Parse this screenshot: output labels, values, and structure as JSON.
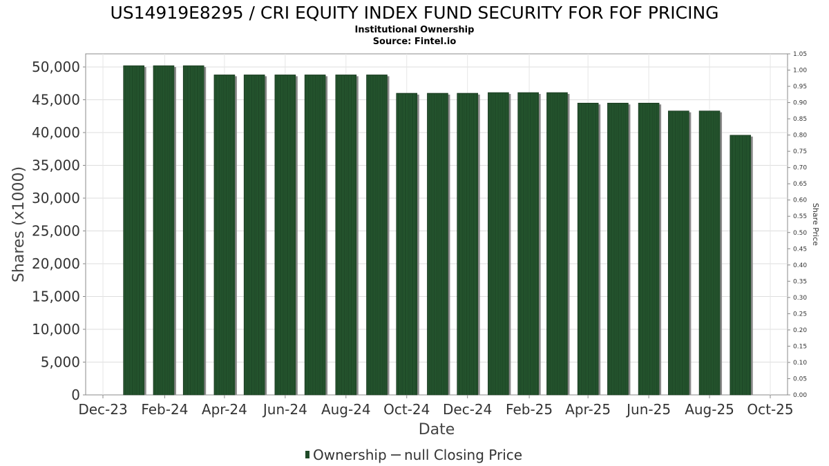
{
  "chart_data": {
    "type": "bar",
    "title": "US14919E8295 / CRI EQUITY INDEX FUND SECURITY FOR FOF PRICING",
    "subtitle_1": "Institutional Ownership",
    "subtitle_2": "Source: Fintel.io",
    "xlabel": "Date",
    "ylabel": "Shares (x1000)",
    "y2label": "Share Price",
    "x_ticks": [
      "Dec-23",
      "Feb-24",
      "Apr-24",
      "Jun-24",
      "Aug-24",
      "Oct-24",
      "Dec-24",
      "Feb-25",
      "Apr-25",
      "Jun-25",
      "Aug-25",
      "Oct-25"
    ],
    "y_ticks": [
      "0",
      "5,000",
      "10,000",
      "15,000",
      "20,000",
      "25,000",
      "30,000",
      "35,000",
      "40,000",
      "45,000",
      "50,000"
    ],
    "y2_ticks": [
      "0.00",
      "0.05",
      "0.10",
      "0.15",
      "0.20",
      "0.25",
      "0.30",
      "0.35",
      "0.40",
      "0.45",
      "0.50",
      "0.55",
      "0.60",
      "0.65",
      "0.70",
      "0.75",
      "0.80",
      "0.85",
      "0.90",
      "0.95",
      "1.00",
      "1.05"
    ],
    "ylim": [
      0,
      52000
    ],
    "y2lim": [
      0,
      1.05
    ],
    "x_range": [
      "2023-12-01",
      "2025-10-01"
    ],
    "series": [
      {
        "name": "Ownership",
        "color": "#1f4a28",
        "x": [
          "2024-01-01",
          "2024-01-31",
          "2024-03-01",
          "2024-04-01",
          "2024-05-01",
          "2024-06-01",
          "2024-07-01",
          "2024-08-01",
          "2024-09-01",
          "2024-10-01",
          "2024-11-01",
          "2024-12-01",
          "2025-01-01",
          "2025-01-31",
          "2025-03-01",
          "2025-04-01",
          "2025-05-01",
          "2025-06-01",
          "2025-07-01",
          "2025-08-01",
          "2025-09-01"
        ],
        "values": [
          50200,
          50200,
          50200,
          48800,
          48800,
          48800,
          48800,
          48800,
          48800,
          46000,
          46000,
          46000,
          46100,
          46100,
          46100,
          44500,
          44500,
          44500,
          43300,
          43300,
          39600
        ]
      }
    ],
    "legend": {
      "position": "bottom-center",
      "items": [
        {
          "label": "Ownership",
          "marker": "bar",
          "color": "#1f4a28"
        },
        {
          "label": "null Closing Price",
          "marker": "line",
          "color": "#555555"
        }
      ]
    },
    "grid": true
  }
}
